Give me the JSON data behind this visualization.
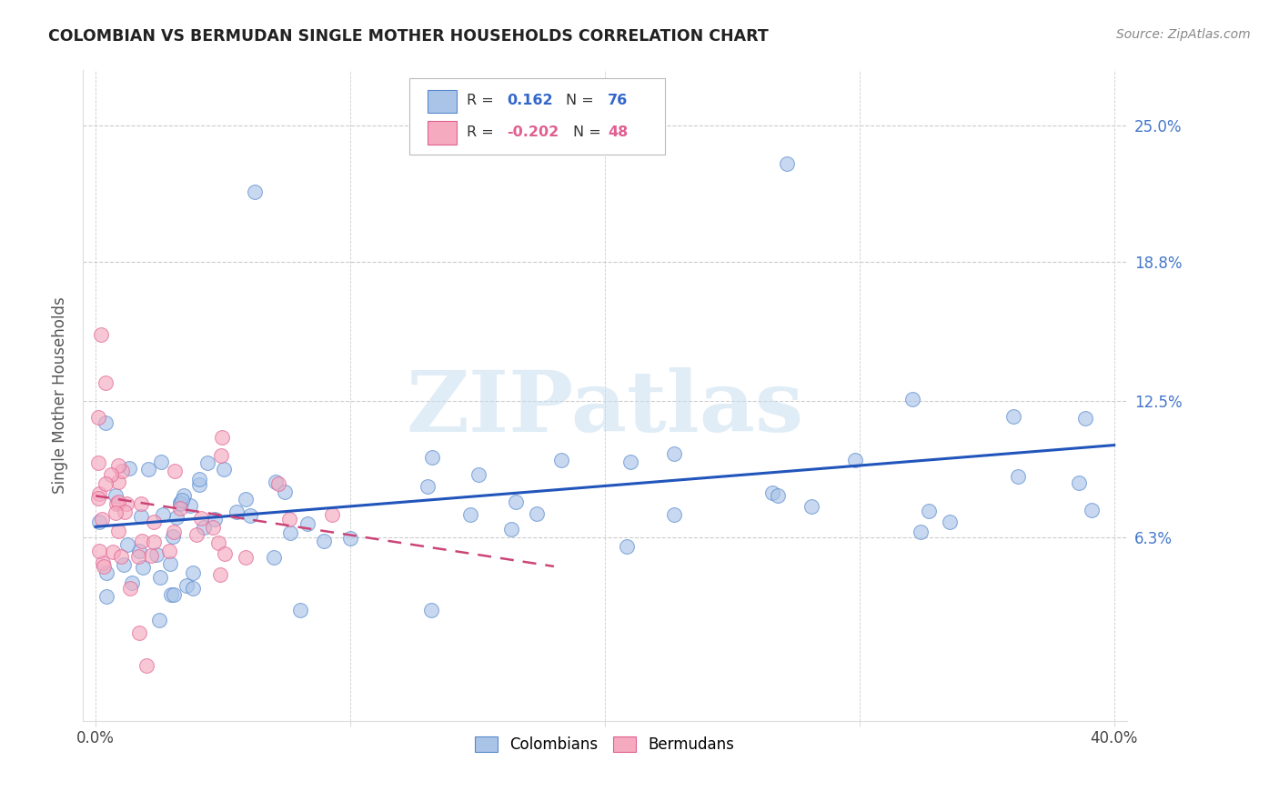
{
  "title": "COLOMBIAN VS BERMUDAN SINGLE MOTHER HOUSEHOLDS CORRELATION CHART",
  "source": "Source: ZipAtlas.com",
  "ylabel": "Single Mother Households",
  "ytick_labels": [
    "6.3%",
    "12.5%",
    "18.8%",
    "25.0%"
  ],
  "ytick_values": [
    0.063,
    0.125,
    0.188,
    0.25
  ],
  "xlim": [
    -0.005,
    0.405
  ],
  "ylim": [
    -0.02,
    0.275
  ],
  "colombian_scatter_color": "#aac4e8",
  "colombian_edge_color": "#5588cc",
  "bermudan_scatter_color": "#f5aac0",
  "bermudan_edge_color": "#e06090",
  "colombian_line_color": "#2255bb",
  "bermudan_line_color": "#cc4477",
  "watermark_text": "ZIPatlas",
  "watermark_color": "#c8dff0",
  "grid_color": "#cccccc",
  "title_color": "#222222",
  "source_color": "#888888",
  "right_tick_color": "#4477cc",
  "bottom_label_color": "#444444",
  "legend_R_col_color": "#3366cc",
  "legend_N_col_color": "#3366cc",
  "legend_R_ber_color": "#e06090",
  "legend_N_ber_color": "#e06090",
  "col_R": 0.162,
  "col_N": 76,
  "ber_R": -0.202,
  "ber_N": 48,
  "col_line_x": [
    0.0,
    0.4
  ],
  "col_line_y": [
    0.068,
    0.105
  ],
  "ber_line_x": [
    0.0,
    0.18
  ],
  "ber_line_y": [
    0.082,
    0.05
  ]
}
